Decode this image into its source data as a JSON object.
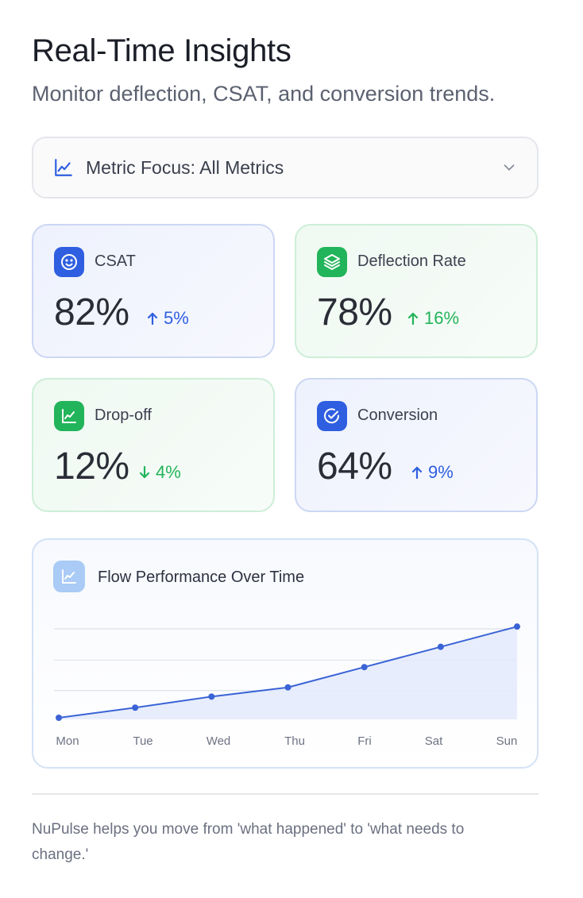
{
  "header": {
    "title": "Real-Time Insights",
    "subtitle": "Monitor deflection, CSAT, and conversion trends."
  },
  "focus_select": {
    "label": "Metric Focus: All Metrics",
    "icon": "line-chart-icon"
  },
  "metrics": [
    {
      "name": "CSAT",
      "value": "82%",
      "delta": "5%",
      "direction": "up",
      "theme": "blue",
      "icon": "smile-icon"
    },
    {
      "name": "Deflection Rate",
      "value": "78%",
      "delta": "16%",
      "direction": "up",
      "theme": "green",
      "icon": "layers-icon"
    },
    {
      "name": "Drop-off",
      "value": "12%",
      "delta": "4%",
      "direction": "down",
      "theme": "green",
      "icon": "line-chart-icon"
    },
    {
      "name": "Conversion",
      "value": "64%",
      "delta": "9%",
      "direction": "up",
      "theme": "blue",
      "icon": "check-badge-icon"
    }
  ],
  "colors": {
    "blue_accent": "#2f5fe0",
    "green_accent": "#22b45a",
    "chart_line": "#3a63d6",
    "chart_fill": "#e3eafb"
  },
  "chart": {
    "title": "Flow Performance Over Time",
    "icon": "line-chart-icon"
  },
  "chart_data": {
    "type": "area",
    "categories": [
      "Mon",
      "Tue",
      "Wed",
      "Thu",
      "Fri",
      "Sat",
      "Sun"
    ],
    "values": [
      0,
      11,
      23,
      33,
      55,
      77,
      99
    ],
    "xlabel": "",
    "ylabel": "",
    "ylim": [
      0,
      100
    ],
    "grid": true
  },
  "footer": {
    "note": "NuPulse helps you move from 'what happened' to 'what needs to change.'"
  }
}
